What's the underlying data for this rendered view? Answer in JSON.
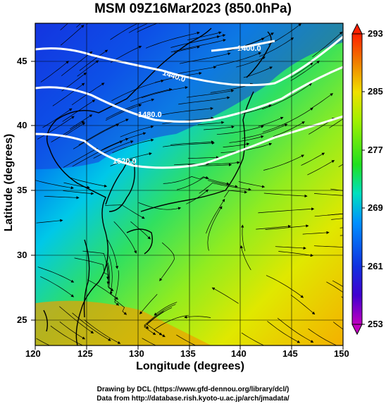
{
  "title": "MSM 09Z16Mar2023 (850.0hPa)",
  "xlabel": "Longitude (degrees)",
  "ylabel": "Latitude  (degrees)",
  "credits": [
    "Drawing by DCL (https://www.gfd-dennou.org/library/dcl/)",
    "Data from http://database.rish.kyoto-u.ac.jp/arch/jmadata/"
  ],
  "lon_ticks": [
    "120",
    "125",
    "130",
    "135",
    "140",
    "145",
    "150"
  ],
  "lat_ticks": [
    "45",
    "40",
    "35",
    "30",
    "25"
  ],
  "colorbar_ticks": [
    "293",
    "285",
    "277",
    "269",
    "261",
    "253"
  ],
  "contour_labels": [
    "1400.0",
    "1440.0",
    "1480.0",
    "1520.0"
  ],
  "map": {
    "lon_range": [
      120,
      150
    ],
    "lat_range": [
      22.4,
      47.6
    ],
    "field": "temperature (K)",
    "temp_range": [
      253,
      293
    ],
    "streamlines": "wind",
    "contours": "geopotential height (m)"
  },
  "colors": {
    "cold": "#1030e0",
    "cool": "#00c0e0",
    "mild": "#20e020",
    "warm": "#f0e000",
    "hot": "#f09000",
    "max": "#ff2000",
    "min": "#c000c0"
  }
}
